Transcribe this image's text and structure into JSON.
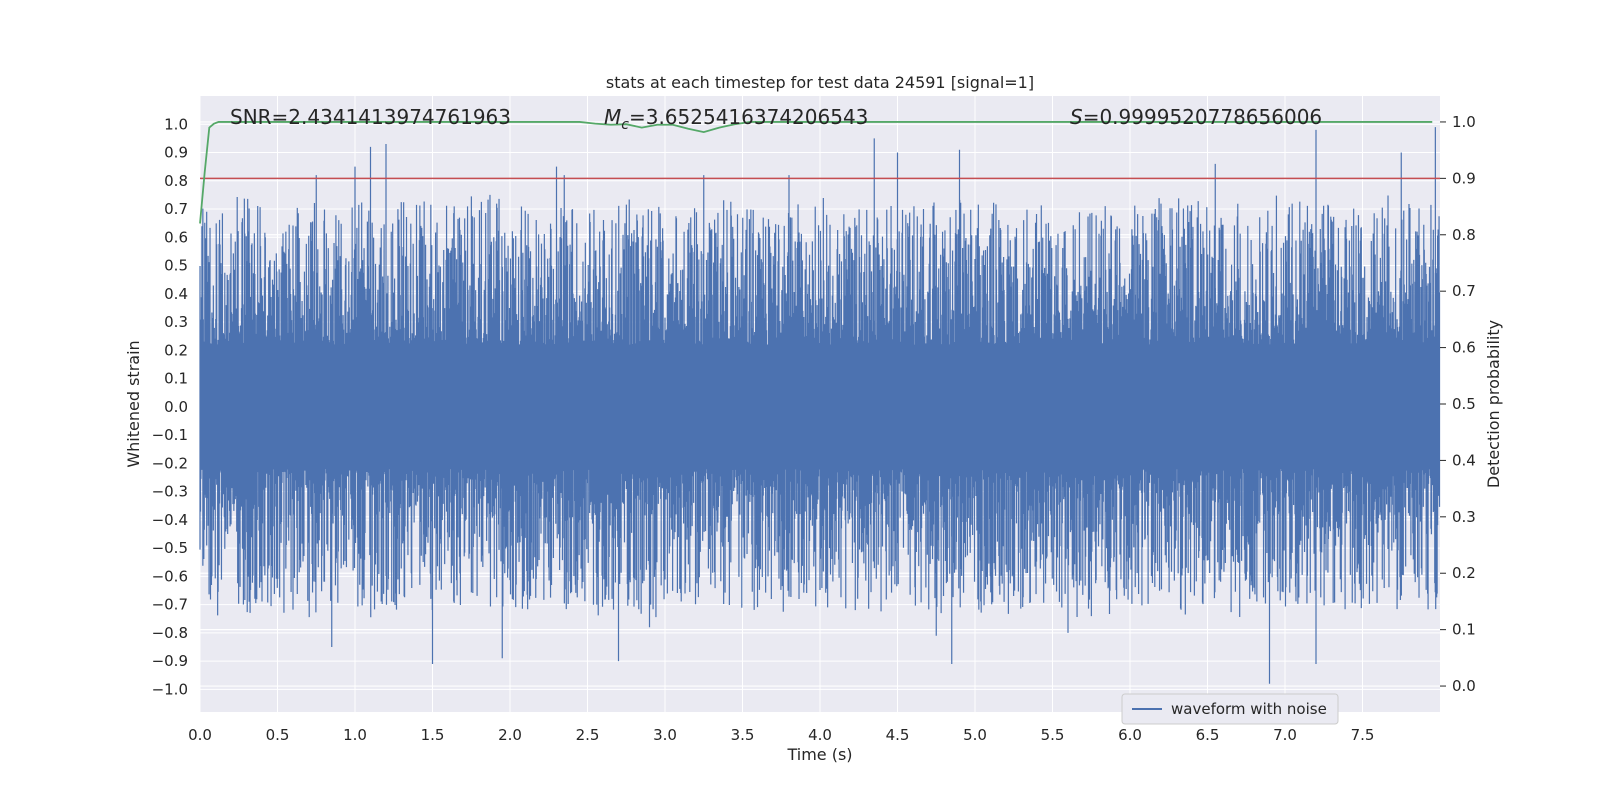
{
  "chart_data": {
    "type": "line",
    "title": "stats at each timestep for test data 24591 [signal=1]",
    "xlabel": "Time (s)",
    "ylabel_left": "Whitened strain",
    "ylabel_right": "Detection probability",
    "xlim": [
      0.0,
      8.0
    ],
    "ylim_left": [
      -1.08,
      1.1
    ],
    "ylim_right": [
      -0.046,
      1.046
    ],
    "x_ticks": [
      0.0,
      0.5,
      1.0,
      1.5,
      2.0,
      2.5,
      3.0,
      3.5,
      4.0,
      4.5,
      5.0,
      5.5,
      6.0,
      6.5,
      7.0,
      7.5
    ],
    "x_tick_labels": [
      "0.0",
      "0.5",
      "1.0",
      "1.5",
      "2.0",
      "2.5",
      "3.0",
      "3.5",
      "4.0",
      "4.5",
      "5.0",
      "5.5",
      "6.0",
      "6.5",
      "7.0",
      "7.5"
    ],
    "y_left_ticks": [
      -1.0,
      -0.9,
      -0.8,
      -0.7,
      -0.6,
      -0.5,
      -0.4,
      -0.3,
      -0.2,
      -0.1,
      0.0,
      0.1,
      0.2,
      0.3,
      0.4,
      0.5,
      0.6,
      0.7,
      0.8,
      0.9,
      1.0
    ],
    "y_left_tick_labels": [
      "−1.0",
      "−0.9",
      "−0.8",
      "−0.7",
      "−0.6",
      "−0.5",
      "−0.4",
      "−0.3",
      "−0.2",
      "−0.1",
      "0.0",
      "0.1",
      "0.2",
      "0.3",
      "0.4",
      "0.5",
      "0.6",
      "0.7",
      "0.8",
      "0.9",
      "1.0"
    ],
    "y_right_ticks": [
      0.0,
      0.1,
      0.2,
      0.3,
      0.4,
      0.5,
      0.6,
      0.7,
      0.8,
      0.9,
      1.0
    ],
    "y_right_tick_labels": [
      "0.0",
      "0.1",
      "0.2",
      "0.3",
      "0.4",
      "0.5",
      "0.6",
      "0.7",
      "0.8",
      "0.9",
      "1.0"
    ],
    "annotations": {
      "snr": "SNR=2.4341413974761963",
      "mc_symbol": "M",
      "mc_sub": "c",
      "mc_value": "=3.6525416374206543",
      "s_symbol": "S",
      "s_value": "=0.9999520778656006"
    },
    "threshold": {
      "value": 0.9,
      "axis": "right",
      "color": "#c44e52"
    },
    "series": [
      {
        "name": "waveform with noise",
        "axis": "left",
        "color": "#4c72b0",
        "style": "dense noise",
        "core_band": [
          -0.2,
          0.2
        ],
        "typical_range": [
          -0.5,
          0.55
        ],
        "peaks_up": [
          [
            1.0,
            0.85
          ],
          [
            1.1,
            0.92
          ],
          [
            1.2,
            0.93
          ],
          [
            0.75,
            0.82
          ],
          [
            2.3,
            0.85
          ],
          [
            2.35,
            0.82
          ],
          [
            3.25,
            0.82
          ],
          [
            3.8,
            0.82
          ],
          [
            4.35,
            0.95
          ],
          [
            4.5,
            0.9
          ],
          [
            4.9,
            0.91
          ],
          [
            6.55,
            0.86
          ],
          [
            7.2,
            0.98
          ],
          [
            7.75,
            0.9
          ],
          [
            7.97,
            0.99
          ]
        ],
        "peaks_down": [
          [
            0.85,
            -0.85
          ],
          [
            1.5,
            -0.91
          ],
          [
            1.95,
            -0.89
          ],
          [
            2.7,
            -0.9
          ],
          [
            2.9,
            -0.78
          ],
          [
            4.75,
            -0.81
          ],
          [
            4.85,
            -0.91
          ],
          [
            5.6,
            -0.8
          ],
          [
            6.9,
            -0.98
          ],
          [
            7.2,
            -0.91
          ]
        ]
      },
      {
        "name": "detection probability",
        "axis": "right",
        "color": "#55a868",
        "x": [
          0.0,
          0.03,
          0.06,
          0.09,
          0.12,
          0.5,
          1.0,
          2.0,
          2.45,
          2.55,
          2.65,
          2.75,
          2.85,
          2.95,
          3.05,
          3.15,
          3.25,
          3.35,
          3.45,
          3.55,
          4.0,
          5.0,
          6.0,
          7.0,
          7.95
        ],
        "values": [
          0.82,
          0.91,
          0.99,
          0.997,
          1.0,
          1.0,
          1.0,
          1.0,
          1.0,
          0.997,
          0.995,
          0.996,
          0.99,
          0.995,
          0.995,
          0.988,
          0.982,
          0.99,
          0.996,
          1.0,
          1.0,
          1.0,
          1.0,
          1.0,
          1.0
        ]
      }
    ],
    "legend": {
      "location": "lower right",
      "entries": [
        "waveform with noise"
      ]
    },
    "grid": true
  }
}
